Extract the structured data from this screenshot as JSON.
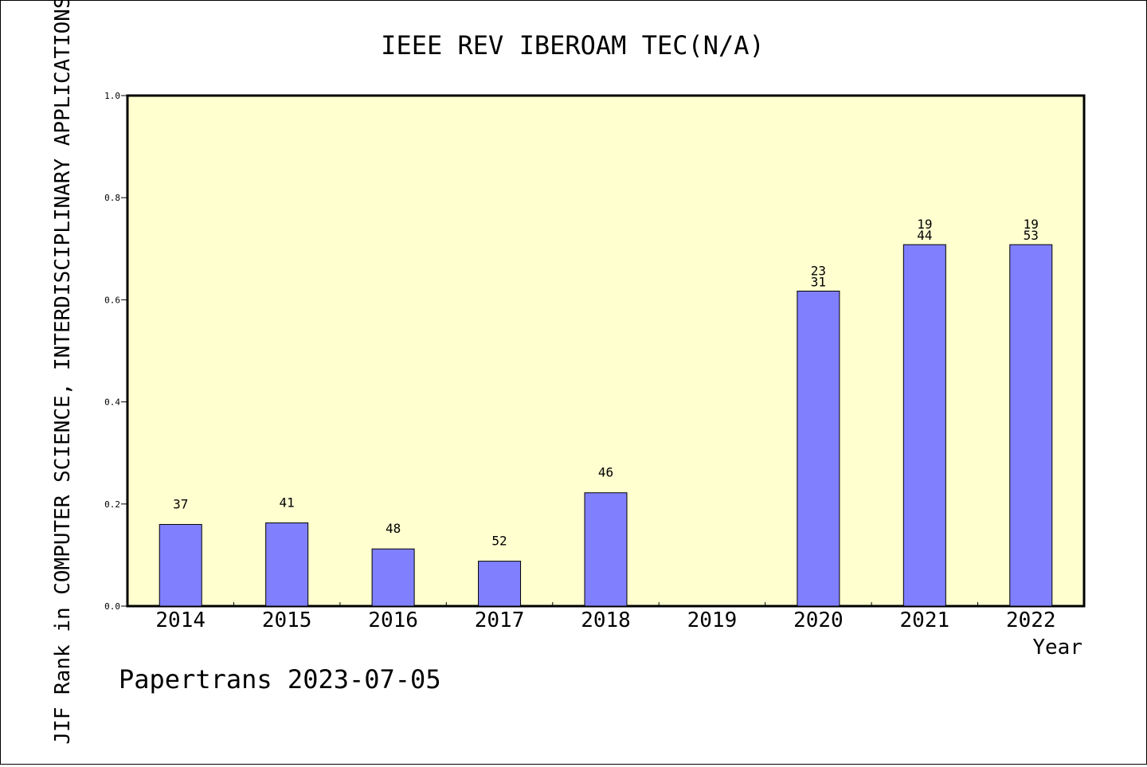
{
  "chart_data": {
    "type": "bar",
    "title": "IEEE REV IBEROAM TEC(N/A)",
    "xlabel": "Year",
    "ylabel": "JIF Rank in COMPUTER SCIENCE, INTERDISCIPLINARY APPLICATIONS",
    "categories": [
      "2014",
      "2015",
      "2016",
      "2017",
      "2018",
      "2019",
      "2020",
      "2021",
      "2022"
    ],
    "values": [
      0.16,
      0.163,
      0.112,
      0.088,
      0.222,
      null,
      0.617,
      0.708,
      0.708
    ],
    "bar_labels": [
      "37",
      "41",
      "48",
      "52",
      "46",
      "",
      "23\n31",
      "19\n44",
      "19\n53"
    ],
    "ylim": [
      0,
      1.0
    ],
    "yticks": [
      "0.0",
      "0.2",
      "0.4",
      "0.6",
      "0.8",
      "1.0"
    ],
    "grid": false,
    "colors": {
      "bar_fill": "#8080ff",
      "plot_background": "#ffffd0",
      "axis": "#000000"
    }
  },
  "footer": {
    "credit": "Papertrans 2023-07-05"
  }
}
